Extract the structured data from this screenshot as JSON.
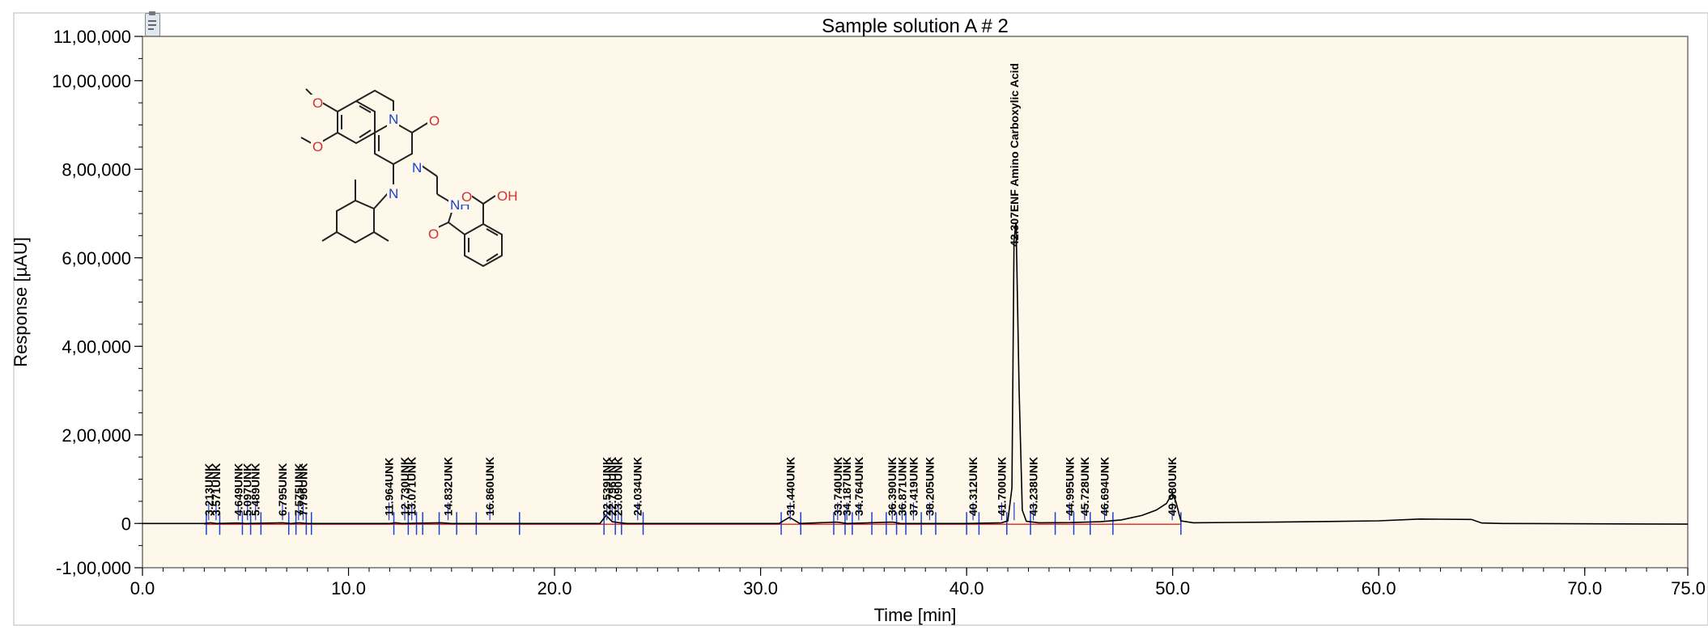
{
  "window_icon": "clipboard-icon",
  "chart_data": {
    "type": "line",
    "title": "Sample solution A # 2",
    "xlabel": "Time [min]",
    "ylabel": "Response [µAU]",
    "xlim": [
      0,
      75
    ],
    "ylim": [
      -100000,
      1100000
    ],
    "x_ticks": [
      {
        "value": 0,
        "label": "0.0"
      },
      {
        "value": 10,
        "label": "10.0"
      },
      {
        "value": 20,
        "label": "20.0"
      },
      {
        "value": 30,
        "label": "30.0"
      },
      {
        "value": 40,
        "label": "40.0"
      },
      {
        "value": 50,
        "label": "50.0"
      },
      {
        "value": 60,
        "label": "60.0"
      },
      {
        "value": 70,
        "label": "70.0"
      },
      {
        "value": 75,
        "label": "75.0"
      }
    ],
    "y_ticks": [
      {
        "value": -100000,
        "label": "-1,00,000"
      },
      {
        "value": 0,
        "label": "0"
      },
      {
        "value": 200000,
        "label": "2,00,000"
      },
      {
        "value": 400000,
        "label": "4,00,000"
      },
      {
        "value": 600000,
        "label": "6,00,000"
      },
      {
        "value": 800000,
        "label": "8,00,000"
      },
      {
        "value": 1000000,
        "label": "10,00,000"
      },
      {
        "value": 1100000,
        "label": "11,00,000"
      }
    ],
    "colors": {
      "background": "#fdf8ea",
      "trace": "#000000",
      "baseline": "#e8332f",
      "marker": "#1f3fd6",
      "frame": "#707070"
    },
    "series": [
      {
        "values": [
          [
            0,
            0
          ],
          [
            3.0,
            0
          ],
          [
            3.3,
            1500
          ],
          [
            3.6,
            0
          ],
          [
            4.6,
            1000
          ],
          [
            5.0,
            0
          ],
          [
            6.8,
            1500
          ],
          [
            7.2,
            0
          ],
          [
            7.6,
            1500
          ],
          [
            8.0,
            0
          ],
          [
            12.0,
            0
          ],
          [
            12.3,
            1500
          ],
          [
            12.6,
            0
          ],
          [
            14.5,
            1500
          ],
          [
            15.0,
            0
          ],
          [
            22.2,
            0
          ],
          [
            22.5,
            18000
          ],
          [
            22.8,
            4000
          ],
          [
            23.1,
            2000
          ],
          [
            23.5,
            0
          ],
          [
            30.9,
            0
          ],
          [
            31.4,
            14000
          ],
          [
            31.9,
            0
          ],
          [
            33.7,
            3000
          ],
          [
            34.2,
            0
          ],
          [
            36.4,
            3000
          ],
          [
            36.8,
            0
          ],
          [
            40.0,
            0
          ],
          [
            41.7,
            1500
          ],
          [
            42.0,
            6000
          ],
          [
            42.2,
            80000
          ],
          [
            42.3,
            640000
          ],
          [
            42.4,
            680000
          ],
          [
            42.55,
            300000
          ],
          [
            42.7,
            30000
          ],
          [
            42.9,
            5000
          ],
          [
            43.5,
            1500
          ],
          [
            45.0,
            2000
          ],
          [
            46.5,
            4000
          ],
          [
            47.5,
            8000
          ],
          [
            48.5,
            18000
          ],
          [
            49.2,
            30000
          ],
          [
            49.7,
            45000
          ],
          [
            49.98,
            68000
          ],
          [
            50.15,
            50000
          ],
          [
            50.4,
            6000
          ],
          [
            51.0,
            1500
          ],
          [
            55.0,
            3000
          ],
          [
            60.0,
            6000
          ],
          [
            62.0,
            10000
          ],
          [
            64.5,
            9000
          ],
          [
            65.0,
            1000
          ],
          [
            66.0,
            0
          ],
          [
            75.0,
            -1500
          ]
        ]
      }
    ],
    "peaks": [
      {
        "rt": 3.213,
        "label": "3.213UNK"
      },
      {
        "rt": 3.571,
        "label": "3.571UNK"
      },
      {
        "rt": 4.649,
        "label": "4.649UNK"
      },
      {
        "rt": 5.097,
        "label": "5.097UNK"
      },
      {
        "rt": 5.489,
        "label": "5.489UNK"
      },
      {
        "rt": 6.795,
        "label": "6.795UNK"
      },
      {
        "rt": 7.575,
        "label": "7.575UNK"
      },
      {
        "rt": 7.796,
        "label": "7.796UNK"
      },
      {
        "rt": 11.964,
        "label": "11.964UNK"
      },
      {
        "rt": 12.73,
        "label": "12.730UNK"
      },
      {
        "rt": 13.071,
        "label": "13.071UNK"
      },
      {
        "rt": 14.832,
        "label": "14.832UNK"
      },
      {
        "rt": 16.86,
        "label": "16.860UNK"
      },
      {
        "rt": 22.539,
        "label": "22.539UNK"
      },
      {
        "rt": 22.796,
        "label": "22.796UNK"
      },
      {
        "rt": 23.09,
        "label": "23.090UNK"
      },
      {
        "rt": 24.034,
        "label": "24.034UNK"
      },
      {
        "rt": 31.44,
        "label": "31.440UNK"
      },
      {
        "rt": 33.74,
        "label": "33.740UNK"
      },
      {
        "rt": 34.187,
        "label": "34.187UNK"
      },
      {
        "rt": 34.764,
        "label": "34.764UNK"
      },
      {
        "rt": 36.39,
        "label": "36.390UNK"
      },
      {
        "rt": 36.871,
        "label": "36.871UNK"
      },
      {
        "rt": 37.419,
        "label": "37.419UNK"
      },
      {
        "rt": 38.205,
        "label": "38.205UNK"
      },
      {
        "rt": 40.312,
        "label": "40.312UNK"
      },
      {
        "rt": 41.7,
        "label": "41.700UNK"
      },
      {
        "rt": 42.307,
        "label": "42.307ENF Amino Carboxylic Acid"
      },
      {
        "rt": 43.238,
        "label": "43.238UNK"
      },
      {
        "rt": 44.995,
        "label": "44.995UNK"
      },
      {
        "rt": 45.728,
        "label": "45.728UNK"
      },
      {
        "rt": 46.694,
        "label": "46.694UNK"
      },
      {
        "rt": 49.98,
        "label": "49.980UNK"
      }
    ],
    "integration_markers": [
      3.1,
      3.75,
      4.85,
      5.25,
      5.75,
      7.1,
      7.45,
      7.95,
      8.2,
      12.2,
      12.9,
      13.3,
      13.6,
      14.4,
      15.25,
      16.2,
      18.3,
      22.4,
      22.95,
      23.25,
      24.3,
      31.0,
      31.95,
      33.55,
      34.1,
      34.45,
      35.4,
      36.1,
      36.6,
      37.05,
      37.8,
      38.5,
      40.0,
      40.6,
      41.95,
      43.1,
      44.3,
      45.2,
      46.0,
      47.1,
      50.4
    ],
    "inset_structure": {
      "type": "chemical-structure",
      "atoms": [
        "O",
        "O",
        "N",
        "O",
        "N",
        "N",
        "NH",
        "O",
        "OH",
        "O"
      ]
    }
  }
}
